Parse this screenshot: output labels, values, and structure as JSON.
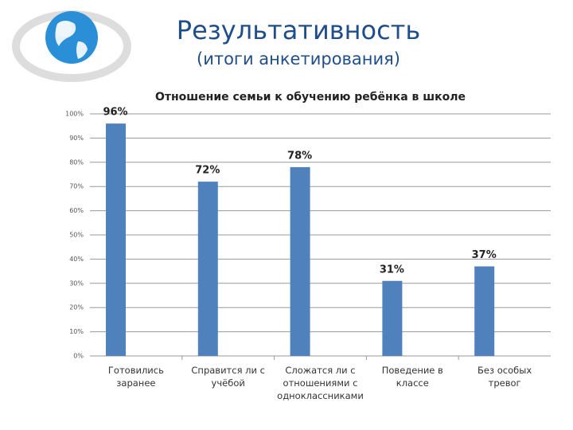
{
  "header": {
    "title": "Результативность",
    "subtitle": "(итоги анкетирования)"
  },
  "chart_data": {
    "type": "bar",
    "title": "Отношение семьи к обучению ребёнка в школе",
    "categories": [
      "Готовились заранее",
      "Справится ли с учёбой",
      "Сложатся ли с отношениями с одноклассниками",
      "Поведение в классе",
      "Без особых тревог"
    ],
    "values": [
      96,
      72,
      78,
      31,
      37
    ],
    "value_labels": [
      "96%",
      "72%",
      "78%",
      "31%",
      "37%"
    ],
    "color": "#4f81bd",
    "ylim": [
      0,
      100
    ],
    "yticks": [
      {
        "value": 0,
        "label": "0%"
      },
      {
        "value": 10,
        "label": "10%"
      },
      {
        "value": 20,
        "label": "20%"
      },
      {
        "value": 30,
        "label": "30%"
      },
      {
        "value": 40,
        "label": "40%"
      },
      {
        "value": 50,
        "label": "50%"
      },
      {
        "value": 60,
        "label": "60%"
      },
      {
        "value": 70,
        "label": "70%"
      },
      {
        "value": 80,
        "label": "80%"
      },
      {
        "value": 90,
        "label": "90%"
      },
      {
        "value": 100,
        "label": "100%"
      }
    ],
    "grid": true
  }
}
